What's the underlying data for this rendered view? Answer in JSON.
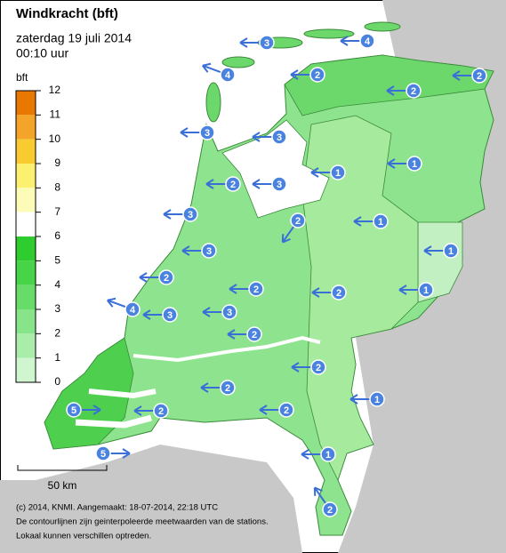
{
  "header": {
    "title": "Windkracht (bft)",
    "date": "zaterdag 19 juli 2014",
    "time": "00:10 uur"
  },
  "legend": {
    "unit": "bft",
    "labels": [
      12,
      11,
      10,
      9,
      8,
      7,
      6,
      5,
      4,
      3,
      2,
      1,
      0
    ],
    "colors": [
      "#e87800",
      "#f4a428",
      "#f8cc30",
      "#fcf070",
      "#fcfcb8",
      "#ffffff",
      "#2ecc2e",
      "#48d448",
      "#68dc68",
      "#88e488",
      "#aaecaa",
      "#d0f6d0"
    ]
  },
  "stations": [
    3,
    4,
    4,
    2,
    2,
    2,
    3,
    3,
    1,
    1,
    2,
    3,
    2,
    3,
    1,
    3,
    1,
    2,
    2,
    2,
    1,
    4,
    3,
    3,
    2,
    2,
    2,
    1,
    5,
    2,
    2,
    5,
    1,
    2
  ],
  "scale_bar": "50 km",
  "footer": [
    "(c) 2014, KNMI. Aangemaakt: 18-07-2014, 22:18 UTC",
    "De contourlijnen zijn geinterpoleerde meetwaarden van de stations.",
    "Lokaal kunnen verschillen optreden."
  ]
}
